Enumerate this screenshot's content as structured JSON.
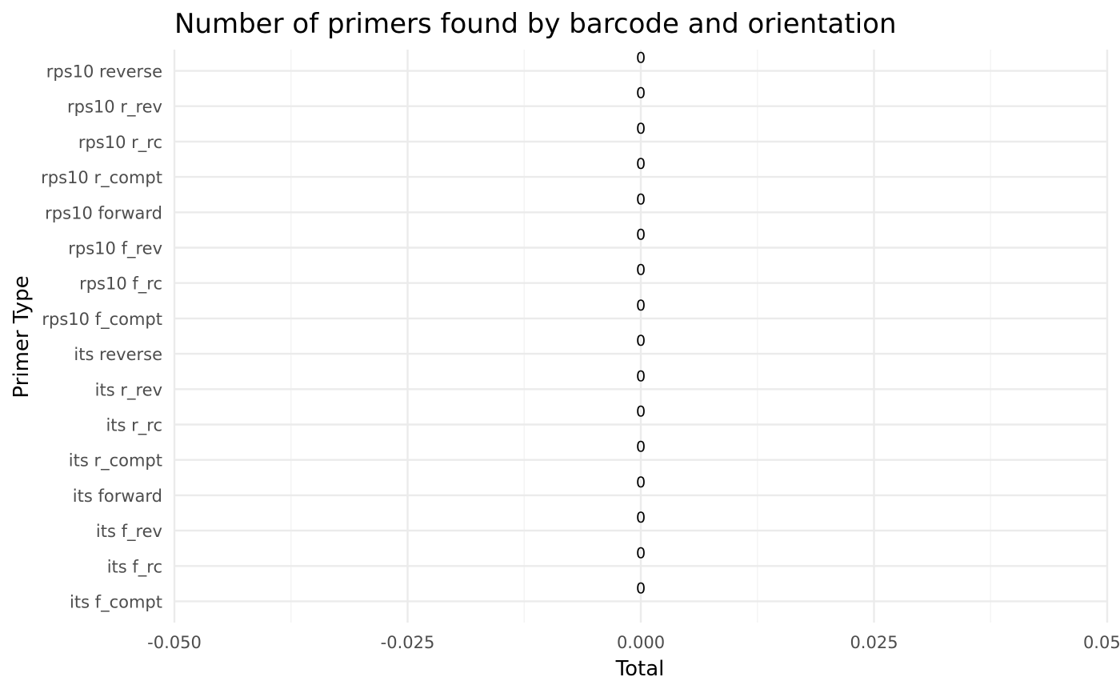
{
  "chart_data": {
    "type": "bar",
    "orientation": "horizontal",
    "title": "Number of primers found by barcode and orientation",
    "xlabel": "Total",
    "ylabel": "Primer Type",
    "xlim": [
      -0.05,
      0.05
    ],
    "x_ticks": [
      -0.05,
      -0.025,
      0.0,
      0.025,
      0.05
    ],
    "x_tick_labels": [
      "-0.050",
      "-0.025",
      "0.000",
      "0.025",
      "0.050"
    ],
    "categories": [
      "its f_compt",
      "its f_rc",
      "its f_rev",
      "its forward",
      "its r_compt",
      "its r_rc",
      "its r_rev",
      "its reverse",
      "rps10 f_compt",
      "rps10 f_rc",
      "rps10 f_rev",
      "rps10 forward",
      "rps10 r_compt",
      "rps10 r_rc",
      "rps10 r_rev",
      "rps10 reverse"
    ],
    "values": [
      0,
      0,
      0,
      0,
      0,
      0,
      0,
      0,
      0,
      0,
      0,
      0,
      0,
      0,
      0,
      0
    ],
    "data_labels": [
      "0",
      "0",
      "0",
      "0",
      "0",
      "0",
      "0",
      "0",
      "0",
      "0",
      "0",
      "0",
      "0",
      "0",
      "0",
      "0"
    ],
    "grid": true,
    "legend": "none"
  }
}
